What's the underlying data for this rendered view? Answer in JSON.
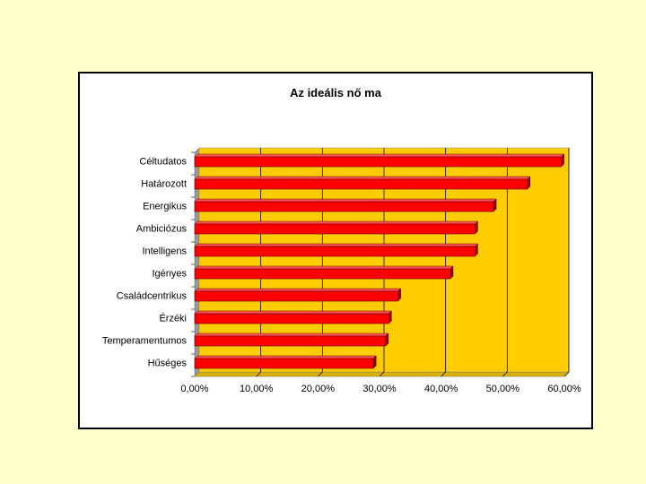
{
  "chart_data": {
    "type": "bar",
    "orientation": "horizontal",
    "title": "Az ideális nő ma",
    "categories": [
      "Céltudatos",
      "Határozott",
      "Energikus",
      "Ambiciózus",
      "Intelligens",
      "Igényes",
      "Családcentrikus",
      "Érzéki",
      "Temperamentumos",
      "Hűséges"
    ],
    "values": [
      59.5,
      54.0,
      48.5,
      45.5,
      45.5,
      41.5,
      33.0,
      31.5,
      31.0,
      29.0
    ],
    "x_ticks": [
      "0,00%",
      "10,00%",
      "20,00%",
      "30,00%",
      "40,00%",
      "50,00%",
      "60,00%"
    ],
    "xlim": [
      0,
      60
    ],
    "xlabel": "",
    "ylabel": "",
    "grid": true,
    "colors": {
      "plot_background": "#ffcc00",
      "bar": "#ff0000",
      "bar_dark": "#990000",
      "gridline": "#000000",
      "page_background": "#ffffcc"
    }
  }
}
